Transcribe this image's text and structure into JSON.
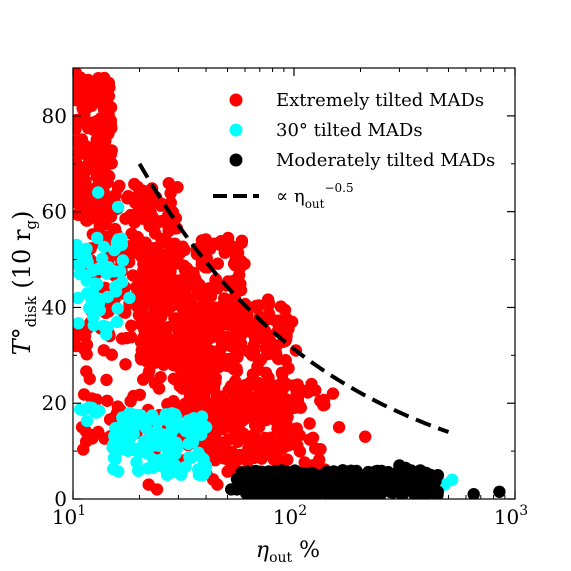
{
  "chart_data": {
    "type": "scatter",
    "title": "",
    "xlabel": {
      "symbol": "η",
      "sub": "out",
      "suffix": " %"
    },
    "ylabel": {
      "symbol": "T°",
      "sub": "disk",
      "paren": "(10 r",
      "paren_sub": "g",
      "paren_end": ")"
    },
    "x_scale": "log",
    "xlim": [
      10,
      1000
    ],
    "ylim": [
      0,
      90
    ],
    "x_ticks": [
      {
        "value": 10,
        "base": "10",
        "exp": "1"
      },
      {
        "value": 100,
        "base": "10",
        "exp": "2"
      },
      {
        "value": 1000,
        "base": "10",
        "exp": "3"
      }
    ],
    "y_ticks": [
      0,
      20,
      40,
      60,
      80
    ],
    "grid": false,
    "legend_position": "top-right",
    "colors": {
      "extreme": "#ff0000",
      "thirty": "#00ffff",
      "moderate": "#000000",
      "powerlaw": "#000000"
    },
    "legend": [
      {
        "label": "Extremely tilted MADs",
        "color": "#ff0000",
        "kind": "marker"
      },
      {
        "label": "30° tilted MADs",
        "color": "#00ffff",
        "kind": "marker"
      },
      {
        "label": "Moderately tilted MADs",
        "color": "#000000",
        "kind": "marker"
      },
      {
        "label": "∝ η",
        "sub": "out",
        "sup": "−0.5",
        "color": "#000000",
        "kind": "dashed"
      }
    ],
    "series": [
      {
        "name": "Extremely tilted MADs",
        "color": "#ff0000",
        "clusters": [
          {
            "x": [
              10.2,
              15
            ],
            "y": [
              58,
              88
            ],
            "n": 220
          },
          {
            "x": [
              12,
              30
            ],
            "y": [
              40,
              66
            ],
            "n": 170
          },
          {
            "x": [
              20,
              60
            ],
            "y": [
              28,
              55
            ],
            "n": 260
          },
          {
            "x": [
              28,
              95
            ],
            "y": [
              8,
              42
            ],
            "n": 360
          },
          {
            "x": [
              40,
              140
            ],
            "y": [
              4,
              24
            ],
            "n": 120
          },
          {
            "x": [
              10.2,
              40
            ],
            "y": [
              10,
              40
            ],
            "n": 130
          }
        ],
        "points": [
          {
            "x": 10.3,
            "y": 89
          },
          {
            "x": 10.8,
            "y": 88
          },
          {
            "x": 10.4,
            "y": 34
          },
          {
            "x": 16,
            "y": 65
          },
          {
            "x": 20,
            "y": 61
          },
          {
            "x": 25,
            "y": 58
          },
          {
            "x": 32,
            "y": 52
          },
          {
            "x": 45,
            "y": 44
          },
          {
            "x": 70,
            "y": 38
          },
          {
            "x": 98,
            "y": 37
          },
          {
            "x": 102,
            "y": 31
          },
          {
            "x": 120,
            "y": 24
          },
          {
            "x": 150,
            "y": 22
          },
          {
            "x": 210,
            "y": 13
          },
          {
            "x": 160,
            "y": 15
          },
          {
            "x": 11,
            "y": 15
          },
          {
            "x": 13,
            "y": 14
          },
          {
            "x": 16,
            "y": 18
          },
          {
            "x": 22,
            "y": 3
          },
          {
            "x": 24,
            "y": 2
          },
          {
            "x": 45,
            "y": 3
          }
        ]
      },
      {
        "name": "30° tilted MADs",
        "color": "#00ffff",
        "clusters": [
          {
            "x": [
              10.2,
              17
            ],
            "y": [
              34,
              55
            ],
            "n": 55
          },
          {
            "x": [
              15,
              40
            ],
            "y": [
              5,
              18
            ],
            "n": 140
          },
          {
            "x": [
              10.5,
              14
            ],
            "y": [
              16,
              20
            ],
            "n": 8
          }
        ],
        "points": [
          {
            "x": 13,
            "y": 64
          },
          {
            "x": 16,
            "y": 61
          },
          {
            "x": 18,
            "y": 42
          },
          {
            "x": 36,
            "y": 14
          },
          {
            "x": 40,
            "y": 15
          },
          {
            "x": 55,
            "y": 2
          },
          {
            "x": 420,
            "y": 2
          },
          {
            "x": 480,
            "y": 3
          },
          {
            "x": 520,
            "y": 4
          }
        ]
      },
      {
        "name": "Moderately tilted MADs",
        "color": "#000000",
        "clusters": [
          {
            "x": [
              55,
              450
            ],
            "y": [
              0.5,
              6
            ],
            "n": 330
          }
        ],
        "points": [
          {
            "x": 300,
            "y": 7
          },
          {
            "x": 320,
            "y": 6.5
          },
          {
            "x": 650,
            "y": 1
          },
          {
            "x": 850,
            "y": 1.5
          },
          {
            "x": 52,
            "y": 2
          },
          {
            "x": 260,
            "y": 5
          }
        ]
      }
    ],
    "reference_line": {
      "label": "∝ η_out^−0.5",
      "exponent": -0.5,
      "x": [
        20,
        500
      ],
      "y_at_start": 70,
      "style": "dashed"
    }
  }
}
